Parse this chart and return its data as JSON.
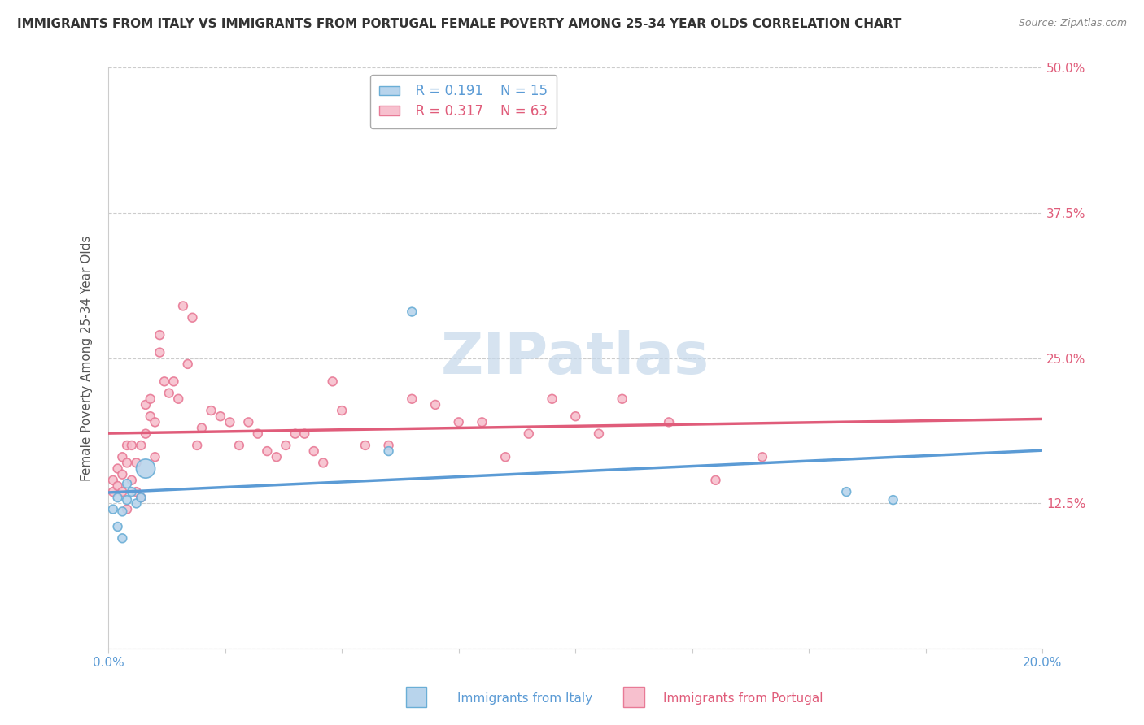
{
  "title": "IMMIGRANTS FROM ITALY VS IMMIGRANTS FROM PORTUGAL FEMALE POVERTY AMONG 25-34 YEAR OLDS CORRELATION CHART",
  "source": "Source: ZipAtlas.com",
  "xlabel_italy": "Immigrants from Italy",
  "xlabel_portugal": "Immigrants from Portugal",
  "ylabel": "Female Poverty Among 25-34 Year Olds",
  "italy_R": 0.191,
  "italy_N": 15,
  "portugal_R": 0.317,
  "portugal_N": 63,
  "italy_color": "#b8d4ec",
  "italy_edge_color": "#6aaed6",
  "italy_line_color": "#5b9bd5",
  "portugal_color": "#f7c0ce",
  "portugal_edge_color": "#e87a96",
  "portugal_line_color": "#e05c7a",
  "xlim": [
    0.0,
    0.2
  ],
  "ylim": [
    0.0,
    0.5
  ],
  "xticks_show": [
    0.0,
    0.2
  ],
  "xticklabels_show": [
    "0.0%",
    "20.0%"
  ],
  "yticks": [
    0.0,
    0.125,
    0.25,
    0.375,
    0.5
  ],
  "yticklabels": [
    "",
    "12.5%",
    "25.0%",
    "37.5%",
    "50.0%"
  ],
  "italy_x": [
    0.001,
    0.002,
    0.002,
    0.003,
    0.003,
    0.004,
    0.004,
    0.005,
    0.006,
    0.007,
    0.008,
    0.06,
    0.065,
    0.158,
    0.168
  ],
  "italy_y": [
    0.12,
    0.105,
    0.13,
    0.118,
    0.095,
    0.142,
    0.128,
    0.135,
    0.125,
    0.13,
    0.155,
    0.17,
    0.29,
    0.135,
    0.128
  ],
  "italy_size": [
    60,
    60,
    60,
    60,
    60,
    60,
    60,
    60,
    60,
    60,
    280,
    60,
    60,
    60,
    60
  ],
  "portugal_x": [
    0.001,
    0.001,
    0.002,
    0.002,
    0.003,
    0.003,
    0.003,
    0.004,
    0.004,
    0.004,
    0.005,
    0.005,
    0.006,
    0.006,
    0.007,
    0.007,
    0.008,
    0.008,
    0.009,
    0.009,
    0.01,
    0.01,
    0.011,
    0.011,
    0.012,
    0.013,
    0.014,
    0.015,
    0.016,
    0.017,
    0.018,
    0.019,
    0.02,
    0.022,
    0.024,
    0.026,
    0.028,
    0.03,
    0.032,
    0.034,
    0.036,
    0.038,
    0.04,
    0.042,
    0.044,
    0.046,
    0.048,
    0.05,
    0.055,
    0.06,
    0.065,
    0.07,
    0.075,
    0.08,
    0.085,
    0.09,
    0.095,
    0.1,
    0.105,
    0.11,
    0.12,
    0.13,
    0.14
  ],
  "portugal_y": [
    0.145,
    0.135,
    0.155,
    0.14,
    0.165,
    0.15,
    0.135,
    0.175,
    0.16,
    0.12,
    0.145,
    0.175,
    0.135,
    0.16,
    0.175,
    0.13,
    0.21,
    0.185,
    0.2,
    0.215,
    0.165,
    0.195,
    0.27,
    0.255,
    0.23,
    0.22,
    0.23,
    0.215,
    0.295,
    0.245,
    0.285,
    0.175,
    0.19,
    0.205,
    0.2,
    0.195,
    0.175,
    0.195,
    0.185,
    0.17,
    0.165,
    0.175,
    0.185,
    0.185,
    0.17,
    0.16,
    0.23,
    0.205,
    0.175,
    0.175,
    0.215,
    0.21,
    0.195,
    0.195,
    0.165,
    0.185,
    0.215,
    0.2,
    0.185,
    0.215,
    0.195,
    0.145,
    0.165
  ],
  "portugal_size": [
    60,
    60,
    60,
    60,
    60,
    60,
    60,
    60,
    60,
    60,
    60,
    60,
    60,
    60,
    60,
    60,
    60,
    60,
    60,
    60,
    60,
    60,
    60,
    60,
    60,
    60,
    60,
    60,
    60,
    60,
    60,
    60,
    60,
    60,
    60,
    60,
    60,
    60,
    60,
    60,
    60,
    60,
    60,
    60,
    60,
    60,
    60,
    60,
    60,
    60,
    60,
    60,
    60,
    60,
    60,
    60,
    60,
    60,
    60,
    60,
    60,
    60,
    60
  ],
  "watermark_text": "ZIPatlas",
  "watermark_color": "#c5d8ea",
  "background_color": "#ffffff",
  "grid_color": "#cccccc",
  "title_fontsize": 11,
  "axis_label_fontsize": 11,
  "tick_fontsize": 11,
  "legend_fontsize": 12
}
